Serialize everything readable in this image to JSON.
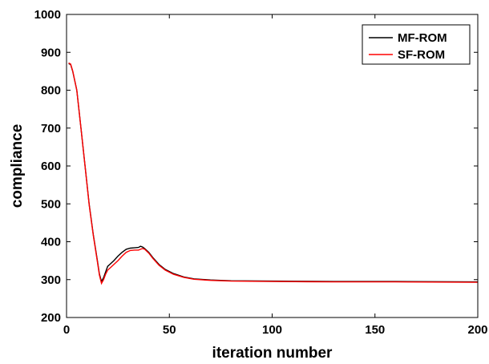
{
  "chart_data": {
    "type": "line",
    "xlabel": "iteration number",
    "ylabel": "compliance",
    "xlim": [
      0,
      200
    ],
    "ylim": [
      200,
      1000
    ],
    "xticks": [
      0,
      50,
      100,
      150,
      200
    ],
    "yticks": [
      200,
      300,
      400,
      500,
      600,
      700,
      800,
      900,
      1000
    ],
    "grid": false,
    "legend_position": "top-right",
    "series": [
      {
        "name": "MF-ROM",
        "color": "#000000",
        "points": [
          [
            1,
            870
          ],
          [
            2,
            868
          ],
          [
            3,
            850
          ],
          [
            5,
            800
          ],
          [
            7,
            700
          ],
          [
            9,
            600
          ],
          [
            11,
            500
          ],
          [
            13,
            420
          ],
          [
            15,
            350
          ],
          [
            16,
            315
          ],
          [
            17,
            295
          ],
          [
            18,
            305
          ],
          [
            19,
            320
          ],
          [
            20,
            335
          ],
          [
            21,
            340
          ],
          [
            23,
            350
          ],
          [
            25,
            362
          ],
          [
            27,
            372
          ],
          [
            29,
            380
          ],
          [
            31,
            383
          ],
          [
            33,
            384
          ],
          [
            35,
            385
          ],
          [
            36,
            388
          ],
          [
            37,
            386
          ],
          [
            38,
            382
          ],
          [
            40,
            372
          ],
          [
            42,
            358
          ],
          [
            45,
            340
          ],
          [
            48,
            327
          ],
          [
            52,
            316
          ],
          [
            57,
            307
          ],
          [
            62,
            302
          ],
          [
            70,
            299
          ],
          [
            80,
            297
          ],
          [
            100,
            296
          ],
          [
            130,
            295
          ],
          [
            160,
            295
          ],
          [
            200,
            294
          ]
        ]
      },
      {
        "name": "SF-ROM",
        "color": "#ff0000",
        "points": [
          [
            1,
            872
          ],
          [
            2,
            869
          ],
          [
            3,
            851
          ],
          [
            5,
            800
          ],
          [
            7,
            700
          ],
          [
            9,
            600
          ],
          [
            11,
            498
          ],
          [
            13,
            418
          ],
          [
            15,
            347
          ],
          [
            16,
            312
          ],
          [
            17,
            290
          ],
          [
            18,
            300
          ],
          [
            19,
            314
          ],
          [
            20,
            325
          ],
          [
            21,
            330
          ],
          [
            23,
            340
          ],
          [
            25,
            350
          ],
          [
            27,
            362
          ],
          [
            29,
            372
          ],
          [
            31,
            377
          ],
          [
            33,
            378
          ],
          [
            35,
            378
          ],
          [
            36,
            380
          ],
          [
            37,
            382
          ],
          [
            38,
            380
          ],
          [
            40,
            370
          ],
          [
            42,
            356
          ],
          [
            45,
            338
          ],
          [
            48,
            325
          ],
          [
            52,
            314
          ],
          [
            57,
            306
          ],
          [
            62,
            301
          ],
          [
            70,
            298
          ],
          [
            80,
            296
          ],
          [
            100,
            295
          ],
          [
            130,
            294
          ],
          [
            160,
            294
          ],
          [
            200,
            293
          ]
        ]
      }
    ]
  }
}
